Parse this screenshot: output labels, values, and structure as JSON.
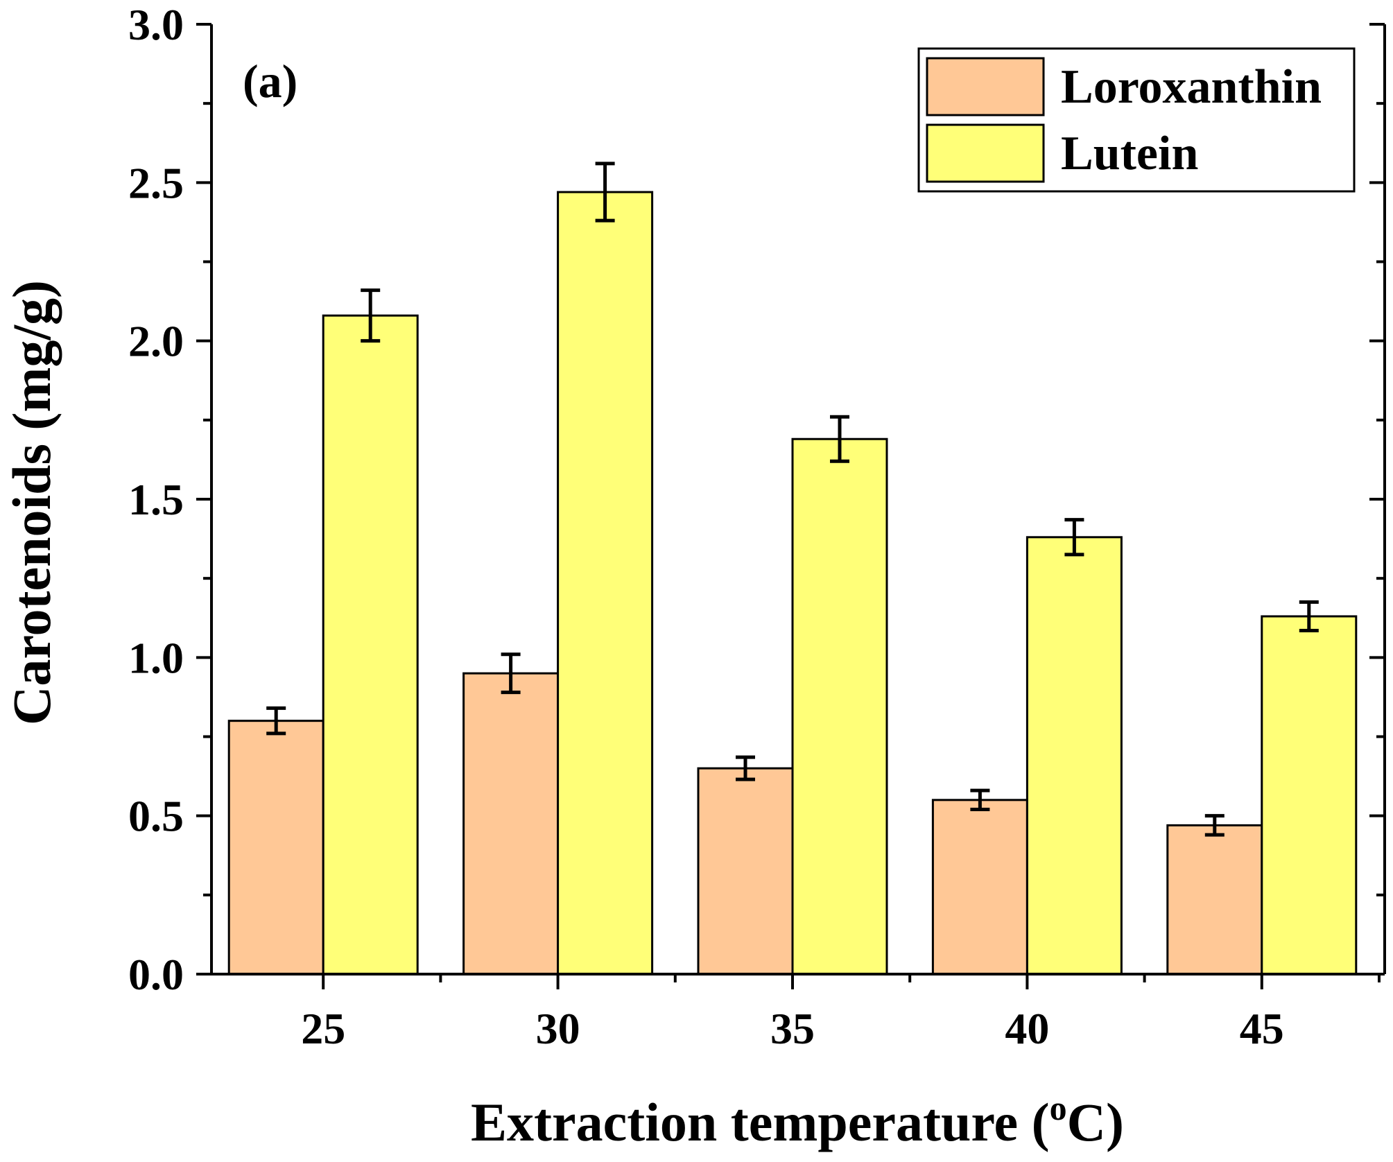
{
  "chart_data": {
    "type": "bar",
    "panel_label": "(a)",
    "title": "",
    "xlabel": {
      "main": "Extraction temperature (",
      "superscript": "o",
      "unit": "C)"
    },
    "ylabel": "Carotenoids (mg/g)",
    "categories": [
      "25",
      "30",
      "35",
      "40",
      "45"
    ],
    "ylim": [
      0,
      3.0
    ],
    "yticks": [
      0.0,
      0.5,
      1.0,
      1.5,
      2.0,
      2.5,
      3.0
    ],
    "ytick_labels": [
      "0.0",
      "0.5",
      "1.0",
      "1.5",
      "2.0",
      "2.5",
      "3.0"
    ],
    "grid": false,
    "legend_position": "top-right",
    "series": [
      {
        "name": "Loroxanthin",
        "color": "#FFC896",
        "values": [
          0.8,
          0.95,
          0.65,
          0.55,
          0.47
        ],
        "errors": [
          0.04,
          0.06,
          0.035,
          0.03,
          0.03
        ]
      },
      {
        "name": "Lutein",
        "color": "#FFFF78",
        "values": [
          2.08,
          2.47,
          1.69,
          1.38,
          1.13
        ],
        "errors": [
          0.08,
          0.09,
          0.07,
          0.055,
          0.045
        ]
      }
    ]
  }
}
